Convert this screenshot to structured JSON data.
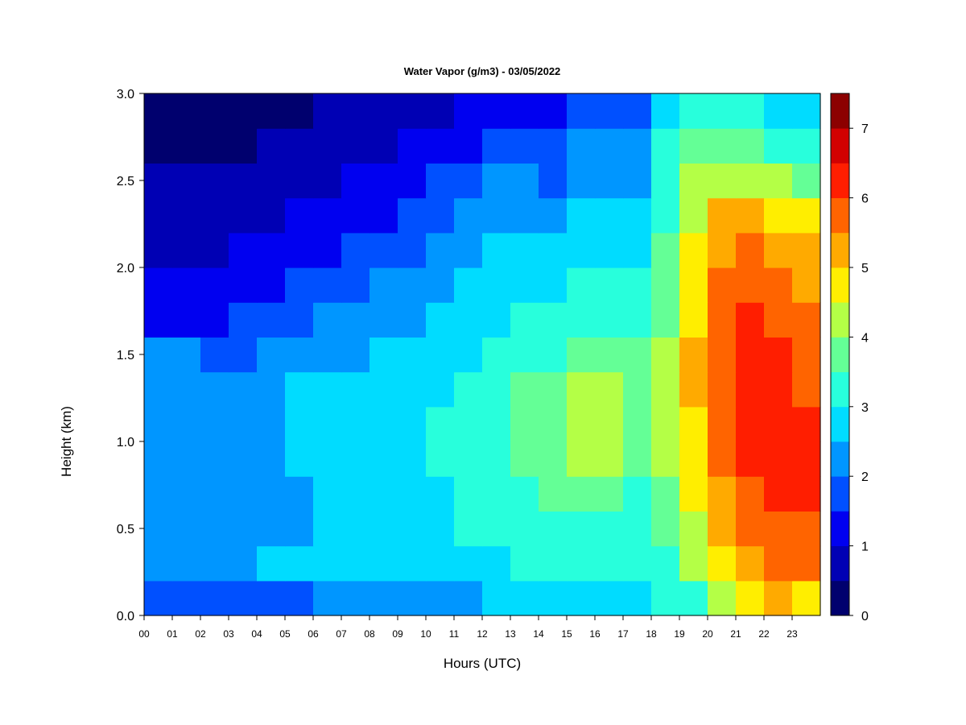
{
  "chart_data": {
    "type": "heatmap",
    "title": "Water Vapor (g/m3) - 03/05/2022",
    "xlabel": "Hours (UTC)",
    "ylabel": "Height (km)",
    "xlim": [
      0,
      24
    ],
    "ylim": [
      0.0,
      3.0
    ],
    "x_tick_labels": [
      "00",
      "01",
      "02",
      "03",
      "04",
      "05",
      "06",
      "07",
      "08",
      "09",
      "10",
      "11",
      "12",
      "13",
      "14",
      "15",
      "16",
      "17",
      "18",
      "19",
      "20",
      "21",
      "22",
      "23"
    ],
    "y_tick_labels": [
      "0.0",
      "0.5",
      "1.0",
      "1.5",
      "2.0",
      "2.5",
      "3.0"
    ],
    "colorbar": {
      "levels": [
        0,
        0.5,
        1,
        1.5,
        2,
        2.5,
        3,
        3.5,
        4,
        4.5,
        5,
        5.5,
        6,
        6.5,
        7,
        7.5
      ],
      "tick_labels": [
        "0",
        "1",
        "2",
        "3",
        "4",
        "5",
        "6",
        "7"
      ],
      "colors": [
        "#00006e",
        "#0000b4",
        "#0000f0",
        "#0050ff",
        "#0096ff",
        "#00dcff",
        "#28ffdc",
        "#64ff96",
        "#b4ff46",
        "#ffee00",
        "#ffaa00",
        "#ff6400",
        "#ff1e00",
        "#d20000",
        "#8c0000"
      ]
    },
    "heights_km": [
      0.1,
      0.3,
      0.5,
      0.7,
      0.9,
      1.1,
      1.3,
      1.5,
      1.7,
      1.9,
      2.1,
      2.3,
      2.5,
      2.7,
      2.9
    ],
    "hours_utc": [
      0.5,
      1.5,
      2.5,
      3.5,
      4.5,
      5.5,
      6.5,
      7.5,
      8.5,
      9.5,
      10.5,
      11.5,
      12.5,
      13.5,
      14.5,
      15.5,
      16.5,
      17.5,
      18.5,
      19.5,
      20.5,
      21.5,
      22.5,
      23.5
    ],
    "z_values": [
      [
        1.8,
        1.8,
        1.7,
        1.7,
        1.7,
        1.9,
        2.1,
        2.1,
        2.1,
        2.1,
        2.2,
        2.4,
        2.6,
        2.6,
        2.6,
        2.8,
        2.7,
        2.5,
        3.0,
        3.4,
        4.0,
        4.5,
        5.0,
        4.9
      ],
      [
        2.2,
        2.3,
        2.3,
        2.4,
        2.5,
        2.6,
        2.7,
        2.7,
        2.7,
        2.8,
        2.8,
        2.9,
        2.9,
        3.0,
        3.1,
        3.2,
        3.0,
        3.0,
        3.4,
        4.0,
        4.6,
        5.1,
        5.6,
        5.6
      ],
      [
        2.4,
        2.4,
        2.4,
        2.4,
        2.4,
        2.4,
        2.5,
        2.6,
        2.7,
        2.7,
        2.8,
        3.0,
        3.1,
        3.2,
        3.3,
        3.4,
        3.3,
        3.2,
        3.6,
        4.3,
        5.0,
        5.5,
        5.9,
        5.8
      ],
      [
        2.4,
        2.4,
        2.4,
        2.4,
        2.4,
        2.4,
        2.5,
        2.6,
        2.7,
        2.8,
        2.9,
        3.1,
        3.3,
        3.4,
        3.6,
        3.9,
        3.7,
        3.4,
        3.8,
        4.6,
        5.3,
        5.8,
        6.1,
        6.0
      ],
      [
        2.4,
        2.4,
        2.4,
        2.4,
        2.4,
        2.5,
        2.6,
        2.7,
        2.8,
        2.9,
        3.0,
        3.2,
        3.3,
        3.5,
        3.8,
        4.2,
        4.1,
        3.6,
        4.0,
        4.8,
        5.5,
        6.0,
        6.2,
        6.1
      ],
      [
        2.3,
        2.4,
        2.4,
        2.4,
        2.4,
        2.5,
        2.6,
        2.7,
        2.8,
        2.9,
        3.0,
        3.2,
        3.4,
        3.6,
        3.9,
        4.3,
        4.3,
        3.7,
        4.1,
        4.9,
        5.6,
        6.1,
        6.3,
        6.0
      ],
      [
        2.2,
        2.3,
        2.3,
        2.4,
        2.4,
        2.5,
        2.6,
        2.6,
        2.7,
        2.8,
        2.9,
        3.1,
        3.3,
        3.5,
        3.8,
        4.1,
        4.2,
        3.7,
        4.1,
        5.0,
        5.7,
        6.1,
        6.2,
        5.9
      ],
      [
        2.0,
        2.0,
        1.9,
        1.9,
        2.0,
        2.2,
        2.3,
        2.4,
        2.5,
        2.6,
        2.7,
        2.9,
        3.1,
        3.3,
        3.4,
        3.7,
        3.7,
        3.5,
        4.0,
        5.0,
        5.7,
        6.2,
        6.1,
        5.8
      ],
      [
        1.4,
        1.3,
        1.3,
        1.5,
        1.6,
        1.8,
        2.0,
        2.1,
        2.3,
        2.4,
        2.5,
        2.7,
        2.8,
        3.0,
        3.1,
        3.3,
        3.3,
        3.2,
        3.8,
        4.8,
        5.7,
        6.0,
        5.8,
        5.6
      ],
      [
        1.1,
        1.0,
        1.1,
        1.2,
        1.3,
        1.5,
        1.6,
        1.8,
        2.0,
        2.2,
        2.3,
        2.5,
        2.6,
        2.8,
        2.9,
        3.0,
        3.0,
        3.0,
        3.6,
        4.6,
        5.6,
        5.8,
        5.6,
        5.4
      ],
      [
        0.9,
        0.9,
        0.9,
        1.0,
        1.1,
        1.2,
        1.3,
        1.5,
        1.7,
        1.9,
        2.1,
        2.3,
        2.5,
        2.6,
        2.7,
        2.8,
        2.7,
        2.8,
        3.5,
        4.5,
        5.4,
        5.5,
        5.3,
        5.1
      ],
      [
        0.8,
        0.7,
        0.8,
        0.8,
        0.9,
        1.0,
        1.1,
        1.2,
        1.4,
        1.6,
        1.9,
        2.1,
        2.3,
        2.4,
        2.3,
        2.5,
        2.5,
        2.5,
        3.3,
        4.3,
        5.0,
        5.0,
        4.8,
        4.5
      ],
      [
        0.6,
        0.5,
        0.6,
        0.7,
        0.8,
        0.9,
        0.9,
        1.0,
        1.1,
        1.3,
        1.6,
        1.9,
        2.0,
        2.1,
        1.8,
        2.2,
        2.3,
        2.2,
        3.1,
        4.0,
        4.4,
        4.4,
        4.1,
        3.7
      ],
      [
        0.4,
        0.4,
        0.4,
        0.4,
        0.5,
        0.6,
        0.7,
        0.8,
        0.9,
        1.0,
        1.2,
        1.4,
        1.6,
        1.7,
        1.6,
        2.0,
        2.1,
        2.0,
        3.0,
        3.6,
        3.6,
        3.6,
        3.3,
        3.0
      ],
      [
        0.3,
        0.3,
        0.3,
        0.3,
        0.4,
        0.4,
        0.5,
        0.6,
        0.7,
        0.8,
        0.9,
        1.1,
        1.3,
        1.4,
        1.4,
        1.7,
        1.9,
        1.9,
        2.8,
        3.2,
        3.2,
        3.1,
        2.9,
        2.8
      ]
    ]
  }
}
